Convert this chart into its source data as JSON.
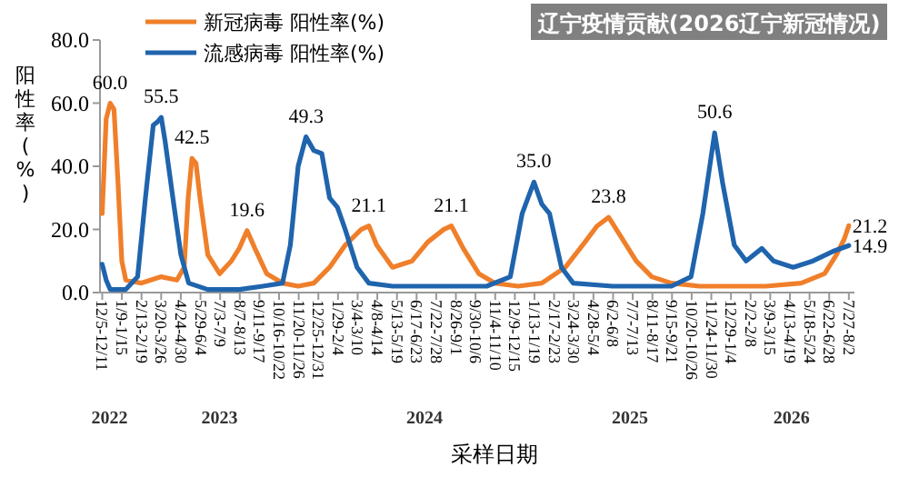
{
  "chart_data": {
    "type": "line",
    "title": "辽宁疫情贡献(2026辽宁新冠情况)",
    "xlabel": "采样日期",
    "ylabel": "阳性率(%)",
    "legend": "top left",
    "xlim": [
      "2022-12-01",
      "2026-08-06"
    ],
    "ylim": [
      0,
      80
    ],
    "yticks": [
      {
        "value": 0,
        "label": "0.0"
      },
      {
        "value": 20,
        "label": "20.0"
      },
      {
        "value": 40,
        "label": "40.0"
      },
      {
        "value": 60,
        "label": "60.0"
      },
      {
        "value": 80,
        "label": "80.0"
      }
    ],
    "xticks": [
      {
        "value": "2022-12-05",
        "label": "12/5-12/11"
      },
      {
        "value": "2023-01-09",
        "label": "1/9-1/15"
      },
      {
        "value": "2023-02-13",
        "label": "2/13-2/19"
      },
      {
        "value": "2023-03-20",
        "label": "3/20-3/26"
      },
      {
        "value": "2023-04-24",
        "label": "4/24-4/30"
      },
      {
        "value": "2023-05-29",
        "label": "5/29-6/4"
      },
      {
        "value": "2023-07-03",
        "label": "7/3-7/9"
      },
      {
        "value": "2023-08-07",
        "label": "8/7-8/13"
      },
      {
        "value": "2023-09-11",
        "label": "9/11-9/17"
      },
      {
        "value": "2023-10-16",
        "label": "10/16-10/22"
      },
      {
        "value": "2023-11-20",
        "label": "11/20-11/26"
      },
      {
        "value": "2023-12-25",
        "label": "12/25-12/31"
      },
      {
        "value": "2024-01-29",
        "label": "1/29-2/4"
      },
      {
        "value": "2024-03-04",
        "label": "3/4-3/10"
      },
      {
        "value": "2024-04-08",
        "label": "4/8-4/14"
      },
      {
        "value": "2024-05-13",
        "label": "5/13-5/19"
      },
      {
        "value": "2024-06-17",
        "label": "6/17-6/23"
      },
      {
        "value": "2024-07-22",
        "label": "7/22-7/28"
      },
      {
        "value": "2024-08-26",
        "label": "8/26-9/1"
      },
      {
        "value": "2024-09-30",
        "label": "9/30-10/6"
      },
      {
        "value": "2024-11-04",
        "label": "11/4-11/10"
      },
      {
        "value": "2024-12-09",
        "label": "12/9-12/15"
      },
      {
        "value": "2025-01-13",
        "label": "1/13-1/19"
      },
      {
        "value": "2025-02-17",
        "label": "2/17-2/23"
      },
      {
        "value": "2025-03-24",
        "label": "3/24-3/30"
      },
      {
        "value": "2025-04-28",
        "label": "4/28-5/4"
      },
      {
        "value": "2025-06-02",
        "label": "6/2-6/8"
      },
      {
        "value": "2025-07-07",
        "label": "7/7-7/13"
      },
      {
        "value": "2025-08-11",
        "label": "8/11-8/17"
      },
      {
        "value": "2025-09-15",
        "label": "9/15-9/21"
      },
      {
        "value": "2025-10-20",
        "label": "10/20-10/26"
      },
      {
        "value": "2025-11-24",
        "label": "11/24-11/30"
      },
      {
        "value": "2025-12-29",
        "label": "12/29-1/4"
      },
      {
        "value": "2026-02-02",
        "label": "2/2-2/8"
      },
      {
        "value": "2026-03-09",
        "label": "3/9-3/15"
      },
      {
        "value": "2026-04-13",
        "label": "4/13-4/19"
      },
      {
        "value": "2026-05-18",
        "label": "5/18-5/24"
      },
      {
        "value": "2026-06-22",
        "label": "6/22-6/28"
      },
      {
        "value": "2026-07-27",
        "label": "7/27-8/2"
      }
    ],
    "x2lim": [
      "2022-12-01",
      "2026-08-06"
    ],
    "x2ticks": [
      {
        "value": "2022-12-18",
        "label": "2022"
      },
      {
        "value": "2023-07-02",
        "label": "2023"
      },
      {
        "value": "2024-07-01",
        "label": "2024"
      },
      {
        "value": "2025-07-02",
        "label": "2025"
      },
      {
        "value": "2026-04-16",
        "label": "2026"
      }
    ],
    "series": [
      {
        "name": "新冠病毒 阳性率(%)",
        "color": "#f07f2a",
        "x": [
          "2022-12-05",
          "2022-12-12",
          "2022-12-19",
          "2022-12-26",
          "2023-01-02",
          "2023-01-09",
          "2023-01-16",
          "2023-02-13",
          "2023-03-20",
          "2023-04-17",
          "2023-04-30",
          "2023-05-07",
          "2023-05-14",
          "2023-05-21",
          "2023-05-28",
          "2023-06-11",
          "2023-07-02",
          "2023-07-23",
          "2023-08-06",
          "2023-08-20",
          "2023-09-03",
          "2023-09-24",
          "2023-10-22",
          "2023-11-19",
          "2023-12-17",
          "2024-01-14",
          "2024-02-11",
          "2024-03-10",
          "2024-03-24",
          "2024-04-07",
          "2024-05-05",
          "2024-06-09",
          "2024-07-07",
          "2024-08-04",
          "2024-08-18",
          "2024-09-08",
          "2024-10-06",
          "2024-11-03",
          "2024-12-15",
          "2025-01-26",
          "2025-03-09",
          "2025-04-13",
          "2025-05-04",
          "2025-05-25",
          "2025-06-15",
          "2025-07-13",
          "2025-08-10",
          "2025-09-14",
          "2025-11-02",
          "2026-01-04",
          "2026-03-01",
          "2026-05-03",
          "2026-06-14",
          "2026-07-05",
          "2026-07-19",
          "2026-07-27"
        ],
        "values": [
          25,
          55,
          60.0,
          58,
          35,
          10,
          4,
          3,
          5,
          4,
          8,
          30,
          42.5,
          41,
          30,
          12,
          6,
          10,
          14,
          19.6,
          14,
          6,
          3,
          2,
          3,
          8,
          15,
          20,
          21.1,
          15,
          8,
          10,
          16,
          20,
          21.1,
          14,
          6,
          3,
          2,
          3,
          8,
          16,
          21,
          23.8,
          18,
          10,
          5,
          3,
          2,
          2,
          2,
          3,
          6,
          12,
          17,
          21.2
        ],
        "value_labels": [
          null,
          null,
          "60.0",
          null,
          null,
          null,
          null,
          null,
          null,
          null,
          null,
          null,
          "42.5",
          null,
          null,
          null,
          null,
          null,
          null,
          "19.6",
          null,
          null,
          null,
          null,
          null,
          null,
          null,
          null,
          "21.1",
          null,
          null,
          null,
          null,
          null,
          "21.1",
          null,
          null,
          null,
          null,
          null,
          null,
          null,
          null,
          "23.8",
          null,
          null,
          null,
          null,
          null,
          null,
          null,
          null,
          null,
          null,
          null,
          "21.2"
        ]
      },
      {
        "name": "流感病毒 阳性率(%)",
        "color": "#1f64ad",
        "x": [
          "2022-12-05",
          "2022-12-12",
          "2022-12-19",
          "2023-01-16",
          "2023-02-06",
          "2023-02-20",
          "2023-03-06",
          "2023-03-13",
          "2023-03-20",
          "2023-03-27",
          "2023-04-10",
          "2023-04-24",
          "2023-05-08",
          "2023-06-11",
          "2023-08-06",
          "2023-09-17",
          "2023-10-22",
          "2023-11-05",
          "2023-11-19",
          "2023-12-03",
          "2023-12-17",
          "2023-12-31",
          "2024-01-14",
          "2024-01-28",
          "2024-02-11",
          "2024-03-03",
          "2024-03-24",
          "2024-05-05",
          "2024-08-04",
          "2024-10-20",
          "2024-12-01",
          "2024-12-22",
          "2025-01-12",
          "2025-01-26",
          "2025-02-09",
          "2025-03-02",
          "2025-03-23",
          "2025-06-01",
          "2025-09-14",
          "2025-10-19",
          "2025-11-09",
          "2025-11-30",
          "2025-12-14",
          "2026-01-04",
          "2026-01-25",
          "2026-02-22",
          "2026-03-15",
          "2026-04-19",
          "2026-05-24",
          "2026-06-28",
          "2026-07-27"
        ],
        "values": [
          9,
          4,
          1,
          1,
          5,
          30,
          53,
          54,
          55.5,
          48,
          30,
          12,
          3,
          1,
          1,
          2,
          3,
          15,
          40,
          49.3,
          45,
          44,
          30,
          27,
          20,
          8,
          3,
          2,
          2,
          2,
          5,
          25,
          35.0,
          28,
          25,
          8,
          3,
          2,
          2,
          5,
          25,
          50.6,
          35,
          15,
          10,
          14,
          10,
          8,
          10,
          13,
          14.9
        ],
        "value_labels": [
          null,
          null,
          null,
          null,
          null,
          null,
          null,
          null,
          "55.5",
          null,
          null,
          null,
          null,
          null,
          null,
          null,
          null,
          null,
          null,
          "49.3",
          null,
          null,
          null,
          null,
          null,
          null,
          null,
          null,
          null,
          null,
          null,
          null,
          "35.0",
          null,
          null,
          null,
          null,
          null,
          null,
          null,
          null,
          "50.6",
          null,
          null,
          null,
          null,
          null,
          null,
          null,
          null,
          "14.9"
        ]
      }
    ]
  }
}
